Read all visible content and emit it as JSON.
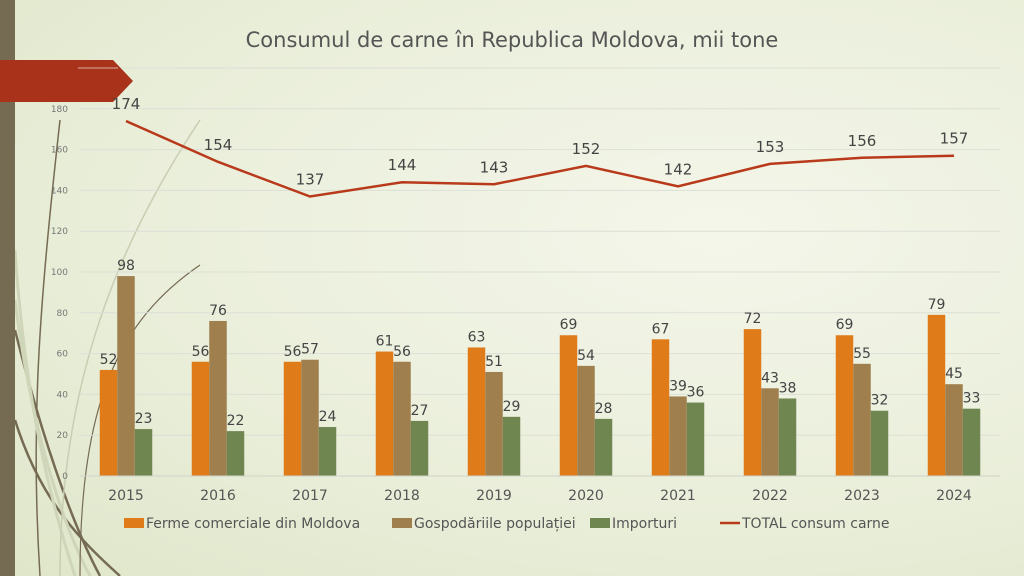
{
  "slide": {
    "accent_colors": {
      "left_bar": "#756B53",
      "banner": "#A8321A"
    }
  },
  "chart_data": {
    "type": "bar",
    "title": "Consumul de carne în Republica Moldova, mii tone",
    "xlabel": "",
    "ylabel": "",
    "ylim": [
      0,
      200
    ],
    "yticks": [
      "0",
      "20",
      "40",
      "60",
      "80",
      "100",
      "120",
      "140",
      "160",
      "180",
      "200"
    ],
    "grid": true,
    "legend_position": "bottom",
    "categories": [
      "2015",
      "2016",
      "2017",
      "2018",
      "2019",
      "2020",
      "2021",
      "2022",
      "2023",
      "2024"
    ],
    "series": [
      {
        "name": "Ferme comerciale din Moldova",
        "type": "bar",
        "color": "#E07B1A",
        "values": [
          52,
          56,
          56,
          61,
          63,
          69,
          67,
          72,
          69,
          79
        ]
      },
      {
        "name": "Gospodăriile populației",
        "type": "bar",
        "color": "#A07F4E",
        "values": [
          98,
          76,
          57,
          56,
          51,
          54,
          39,
          43,
          55,
          45
        ]
      },
      {
        "name": "Importuri",
        "type": "bar",
        "color": "#6F8650",
        "values": [
          23,
          22,
          24,
          27,
          29,
          28,
          36,
          38,
          32,
          33
        ]
      },
      {
        "name": "TOTAL consum carne",
        "type": "line",
        "color": "#B83A1B",
        "values": [
          174,
          154,
          137,
          144,
          143,
          152,
          142,
          153,
          156,
          157
        ]
      }
    ]
  }
}
